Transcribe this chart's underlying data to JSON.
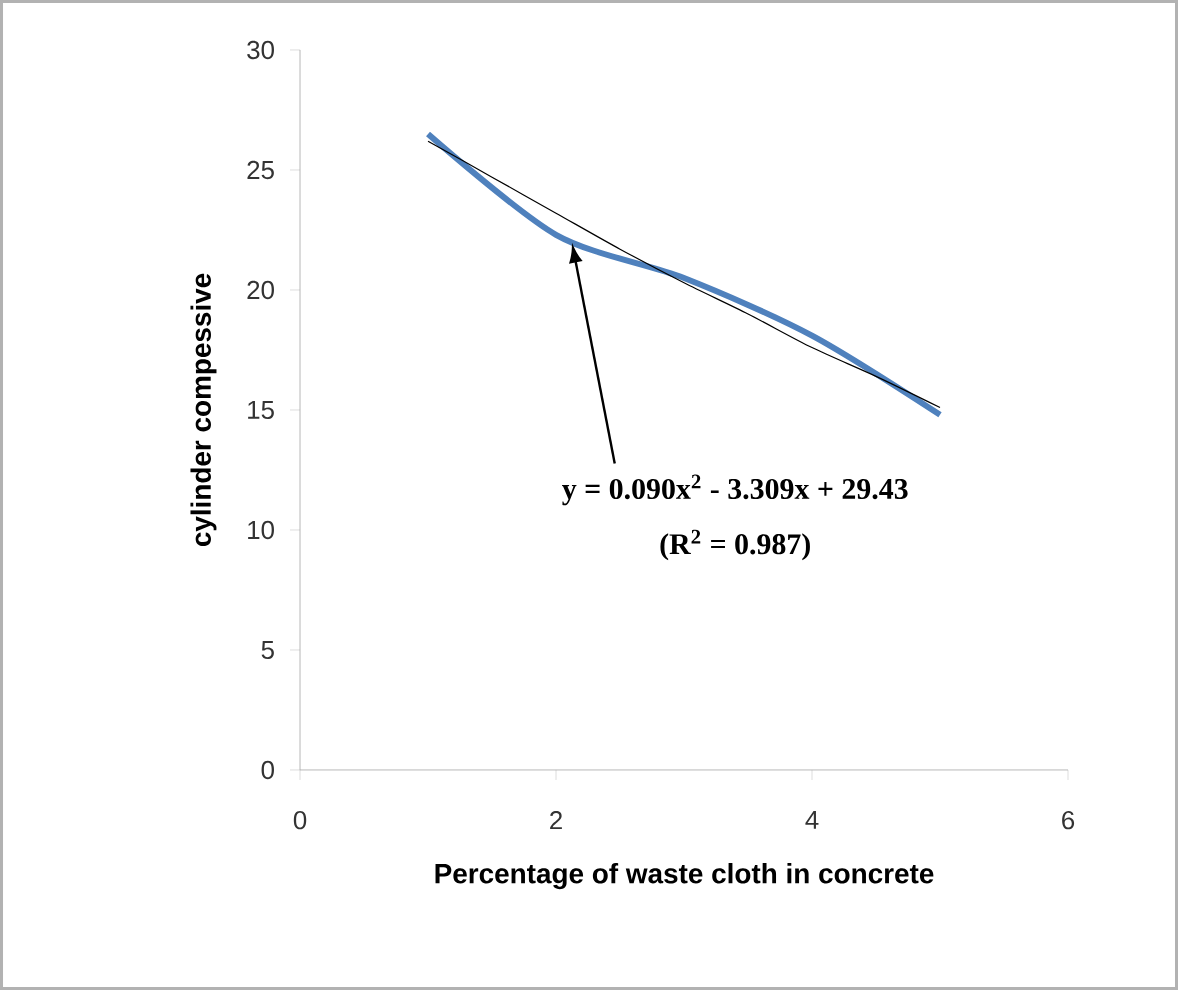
{
  "chart_data": {
    "type": "line",
    "xlabel": "Percentage of waste cloth in concrete",
    "ylabel": "cylinder compessive",
    "xlim": [
      0,
      6
    ],
    "ylim": [
      0,
      30
    ],
    "xticks": [
      0,
      2,
      4,
      6
    ],
    "yticks": [
      0,
      5,
      10,
      15,
      20,
      25,
      30
    ],
    "grid": false,
    "series": [
      {
        "color": "#4f81bd",
        "x": [
          1,
          2,
          3,
          4,
          5
        ],
        "values": [
          26.5,
          22.3,
          20.5,
          18.1,
          14.8
        ]
      },
      {
        "color": "#000000",
        "x": [
          1,
          1.5,
          2,
          2.5,
          3,
          3.5,
          4,
          4.5,
          5
        ],
        "values": [
          26.2,
          24.7,
          23.2,
          21.7,
          20.3,
          19.0,
          17.6,
          16.4,
          15.1
        ]
      }
    ],
    "annotations": [
      "y = 0.090x$^{2}$ - 3.309x + 29.43",
      "(R$^{2}$ = 0.987)"
    ]
  }
}
